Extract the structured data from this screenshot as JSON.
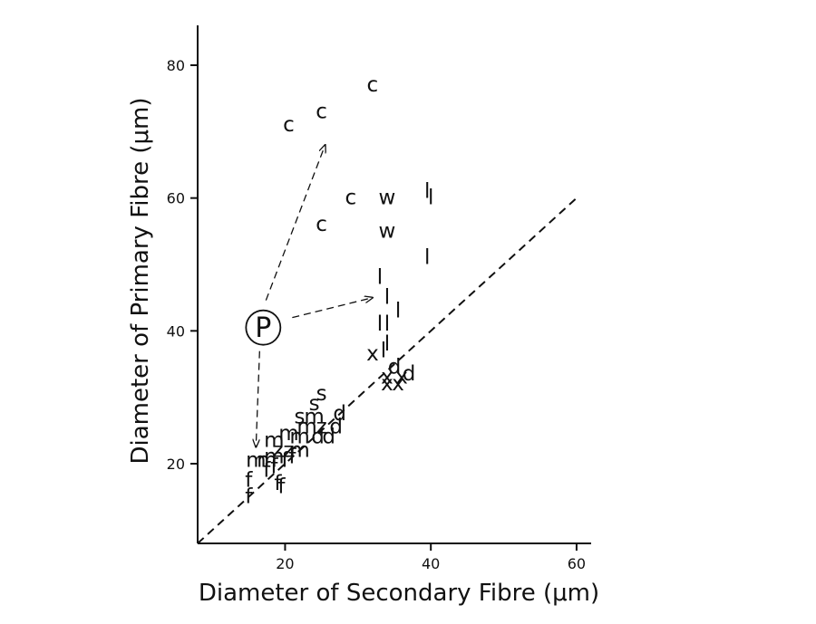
{
  "chart_data": {
    "type": "scatter",
    "xlabel": "Diameter of Secondary Fibre (μm)",
    "ylabel": "Diameter of Primary Fibre (μm)",
    "xlim": [
      8,
      62
    ],
    "ylim": [
      8,
      86
    ],
    "xticks": [
      "20",
      "40",
      "60"
    ],
    "yticks": [
      "20",
      "40",
      "60",
      "80"
    ],
    "reference_line": "y = x",
    "annotation_label": "P",
    "points": [
      {
        "label": "c",
        "x": 32,
        "y": 77
      },
      {
        "label": "c",
        "x": 25,
        "y": 73
      },
      {
        "label": "c",
        "x": 20.5,
        "y": 71
      },
      {
        "label": "c",
        "x": 29,
        "y": 60
      },
      {
        "label": "c",
        "x": 25,
        "y": 56
      },
      {
        "label": "w",
        "x": 34,
        "y": 60
      },
      {
        "label": "w",
        "x": 34,
        "y": 55
      },
      {
        "label": "l",
        "x": 39.5,
        "y": 61
      },
      {
        "label": "l",
        "x": 40,
        "y": 60
      },
      {
        "label": "l",
        "x": 39.5,
        "y": 51
      },
      {
        "label": "l",
        "x": 33,
        "y": 48
      },
      {
        "label": "l",
        "x": 34,
        "y": 45
      },
      {
        "label": "l",
        "x": 35.5,
        "y": 43
      },
      {
        "label": "l",
        "x": 33,
        "y": 41
      },
      {
        "label": "l",
        "x": 34,
        "y": 41
      },
      {
        "label": "l",
        "x": 34,
        "y": 38
      },
      {
        "label": "l",
        "x": 33.5,
        "y": 37
      },
      {
        "label": "x",
        "x": 32,
        "y": 36.5
      },
      {
        "label": "x",
        "x": 34,
        "y": 33
      },
      {
        "label": "x",
        "x": 34,
        "y": 32
      },
      {
        "label": "x",
        "x": 35.5,
        "y": 32
      },
      {
        "label": "x",
        "x": 36,
        "y": 33
      },
      {
        "label": "d",
        "x": 35,
        "y": 34.5
      },
      {
        "label": "d",
        "x": 37,
        "y": 33.5
      },
      {
        "label": "s",
        "x": 25,
        "y": 30.5
      },
      {
        "label": "s",
        "x": 24,
        "y": 29
      },
      {
        "label": "s",
        "x": 22,
        "y": 27
      },
      {
        "label": "m",
        "x": 24,
        "y": 27
      },
      {
        "label": "d",
        "x": 27.5,
        "y": 27.5
      },
      {
        "label": "m",
        "x": 23,
        "y": 25.5
      },
      {
        "label": "z",
        "x": 25,
        "y": 25.5
      },
      {
        "label": "d",
        "x": 27,
        "y": 25.5
      },
      {
        "label": "m",
        "x": 20.5,
        "y": 24.5
      },
      {
        "label": "m",
        "x": 22,
        "y": 24
      },
      {
        "label": "d",
        "x": 24.5,
        "y": 24
      },
      {
        "label": "d",
        "x": 26,
        "y": 24
      },
      {
        "label": "m",
        "x": 18.5,
        "y": 23.5
      },
      {
        "label": "z",
        "x": 19,
        "y": 22
      },
      {
        "label": "z",
        "x": 20.5,
        "y": 22
      },
      {
        "label": "m",
        "x": 22,
        "y": 22
      },
      {
        "label": "m",
        "x": 16,
        "y": 20.5
      },
      {
        "label": "m",
        "x": 17.5,
        "y": 20.5
      },
      {
        "label": "m",
        "x": 18.5,
        "y": 21
      },
      {
        "label": "f",
        "x": 20,
        "y": 20.5
      },
      {
        "label": "f",
        "x": 21,
        "y": 21
      },
      {
        "label": "f",
        "x": 17.5,
        "y": 19
      },
      {
        "label": "f",
        "x": 18.5,
        "y": 19.5
      },
      {
        "label": "f",
        "x": 15,
        "y": 17.5
      },
      {
        "label": "f",
        "x": 19,
        "y": 17
      },
      {
        "label": "f",
        "x": 19.5,
        "y": 16.5
      },
      {
        "label": "f",
        "x": 15,
        "y": 15
      }
    ]
  }
}
